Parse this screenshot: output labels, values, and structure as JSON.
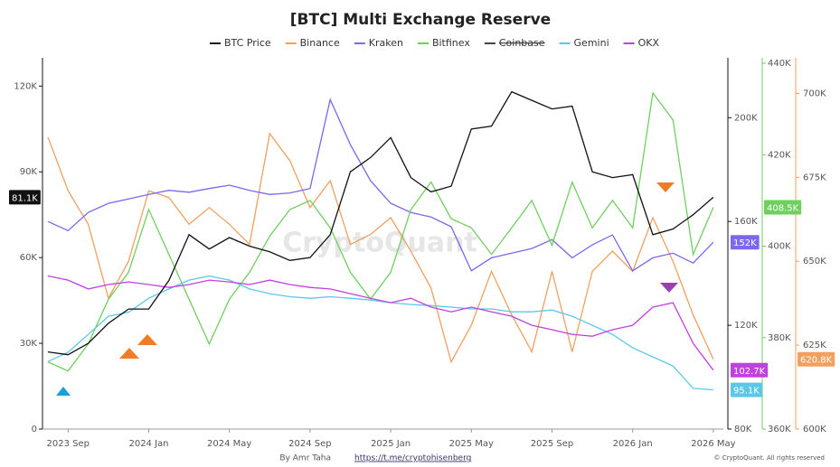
{
  "chart_data": {
    "type": "line",
    "title": "[BTC] Multi Exchange Reserve",
    "watermark": "CryptoQuant",
    "author": "By Amr Taha",
    "link": "https://t.me/cryptohisenberg",
    "copyright": "© CryptoQuant. All rights reserved",
    "x": [
      "2023-08",
      "2023-09",
      "2023-10",
      "2023-11",
      "2023-12",
      "2024-01",
      "2024-02",
      "2024-03",
      "2024-04",
      "2024-05",
      "2024-06",
      "2024-07",
      "2024-08",
      "2024-09",
      "2024-10",
      "2024-11",
      "2024-12",
      "2025-01",
      "2025-02",
      "2025-03",
      "2025-04",
      "2025-05",
      "2025-06",
      "2025-07",
      "2025-08",
      "2025-09",
      "2025-10",
      "2025-11",
      "2025-12",
      "2026-01",
      "2026-02",
      "2026-03",
      "2026-04",
      "2026-05"
    ],
    "xticks": [
      {
        "value": "2023-09",
        "label": "2023 Sep"
      },
      {
        "value": "2024-01",
        "label": "2024 Jan"
      },
      {
        "value": "2024-05",
        "label": "2024 May"
      },
      {
        "value": "2024-09",
        "label": "2024 Sep"
      },
      {
        "value": "2025-01",
        "label": "2025 Jan"
      },
      {
        "value": "2025-05",
        "label": "2025 May"
      },
      {
        "value": "2025-09",
        "label": "2025 Sep"
      },
      {
        "value": "2026-01",
        "label": "2026 Jan"
      },
      {
        "value": "2026-05",
        "label": "2026 May"
      }
    ],
    "ylim": [
      0,
      128000
    ],
    "yticks": [
      0,
      {
        "value": 30000,
        "label": "30K"
      },
      {
        "value": 60000,
        "label": "60K"
      },
      {
        "value": 90000,
        "label": "90K"
      },
      {
        "value": 120000,
        "label": "120K"
      }
    ],
    "y2lim": [
      80000,
      221000
    ],
    "y2ticks": [
      {
        "value": 80000,
        "label": "80K"
      },
      {
        "value": 120000,
        "label": "120K"
      },
      {
        "value": 160000,
        "label": "160K"
      },
      {
        "value": 200000,
        "label": "200K"
      }
    ],
    "y3lim": [
      360000,
      440000
    ],
    "y3ticks": [
      {
        "value": 360000,
        "label": "360K"
      },
      {
        "value": 380000,
        "label": "380K"
      },
      {
        "value": 400000,
        "label": "400K"
      },
      {
        "value": 420000,
        "label": "420K"
      },
      {
        "value": 440000,
        "label": "440K"
      }
    ],
    "y3color": "#6fcf5f",
    "y4lim": [
      600000,
      709000
    ],
    "y4ticks": [
      {
        "value": 600000,
        "label": "600K"
      },
      {
        "value": 625000,
        "label": "625K"
      },
      {
        "value": 650000,
        "label": "650K"
      },
      {
        "value": 675000,
        "label": "675K"
      },
      {
        "value": 700000,
        "label": "700K"
      }
    ],
    "y4color": "#f0a060",
    "series": [
      {
        "name": "BTC Price",
        "color": "#111111",
        "axis": "y",
        "last_label": "81.1K",
        "values": [
          27000,
          26000,
          30000,
          37000,
          42000,
          42000,
          52000,
          68000,
          63000,
          67000,
          64000,
          62000,
          59000,
          60000,
          68000,
          90000,
          95000,
          102000,
          88000,
          83000,
          85000,
          105000,
          106000,
          118000,
          115000,
          112000,
          113000,
          90000,
          88000,
          89000,
          68000,
          70000,
          75000,
          81100
        ]
      },
      {
        "name": "Binance",
        "color": "#f0a060",
        "axis": "y4",
        "last_label": "620.8K",
        "values": [
          687000,
          671000,
          661000,
          639000,
          650000,
          671000,
          669000,
          661000,
          666000,
          661000,
          655000,
          688000,
          680000,
          666000,
          674000,
          655000,
          658000,
          663000,
          653000,
          642000,
          620000,
          631000,
          647000,
          634000,
          623000,
          647000,
          623000,
          647000,
          653000,
          647000,
          663000,
          650000,
          634000,
          620800
        ]
      },
      {
        "name": "Kraken",
        "color": "#7b68ee",
        "axis": "y2",
        "last_label": "152K",
        "values": [
          160000,
          156500,
          163500,
          167000,
          168700,
          170400,
          172000,
          171300,
          172700,
          174000,
          172000,
          170400,
          171000,
          172700,
          207000,
          189600,
          175700,
          167000,
          163500,
          161700,
          158000,
          141000,
          146000,
          147800,
          149600,
          153000,
          146000,
          151000,
          154800,
          141000,
          146000,
          147800,
          144000,
          152000
        ]
      },
      {
        "name": "Bitfinex",
        "color": "#6fcf5f",
        "axis": "y3",
        "last_label": "408.5K",
        "values": [
          374700,
          372700,
          378600,
          388400,
          394300,
          408000,
          398200,
          388400,
          378600,
          388400,
          394300,
          402200,
          408000,
          410000,
          404000,
          394300,
          388400,
          394300,
          408000,
          414000,
          406000,
          404000,
          398200,
          404000,
          410000,
          400200,
          414000,
          404000,
          410000,
          404000,
          433500,
          427600,
          398200,
          408500
        ]
      },
      {
        "name": "Coinbase",
        "color": "#444444",
        "axis": "y2",
        "hidden": true
      },
      {
        "name": "Gemini",
        "color": "#5bc8e8",
        "axis": "y2",
        "last_label": "95.1K",
        "values": [
          106000,
          109600,
          116500,
          123500,
          125000,
          130400,
          134000,
          137400,
          139000,
          137400,
          134000,
          132200,
          131000,
          130400,
          131000,
          130400,
          129700,
          128700,
          128000,
          127600,
          127000,
          126300,
          126300,
          125200,
          125200,
          125900,
          123500,
          120000,
          116500,
          111300,
          107800,
          104300,
          95700,
          95100
        ]
      },
      {
        "name": "OKX",
        "color": "#c040e0",
        "axis": "y2",
        "last_label": "102.7K",
        "values": [
          139000,
          137400,
          134000,
          135700,
          136700,
          135700,
          134600,
          135700,
          137400,
          136700,
          135700,
          137400,
          135700,
          134600,
          134000,
          132200,
          130400,
          128700,
          130400,
          127000,
          125200,
          127000,
          125200,
          123500,
          120000,
          118300,
          116500,
          115800,
          118300,
          120000,
          127000,
          128700,
          113000,
          102700
        ]
      }
    ]
  }
}
